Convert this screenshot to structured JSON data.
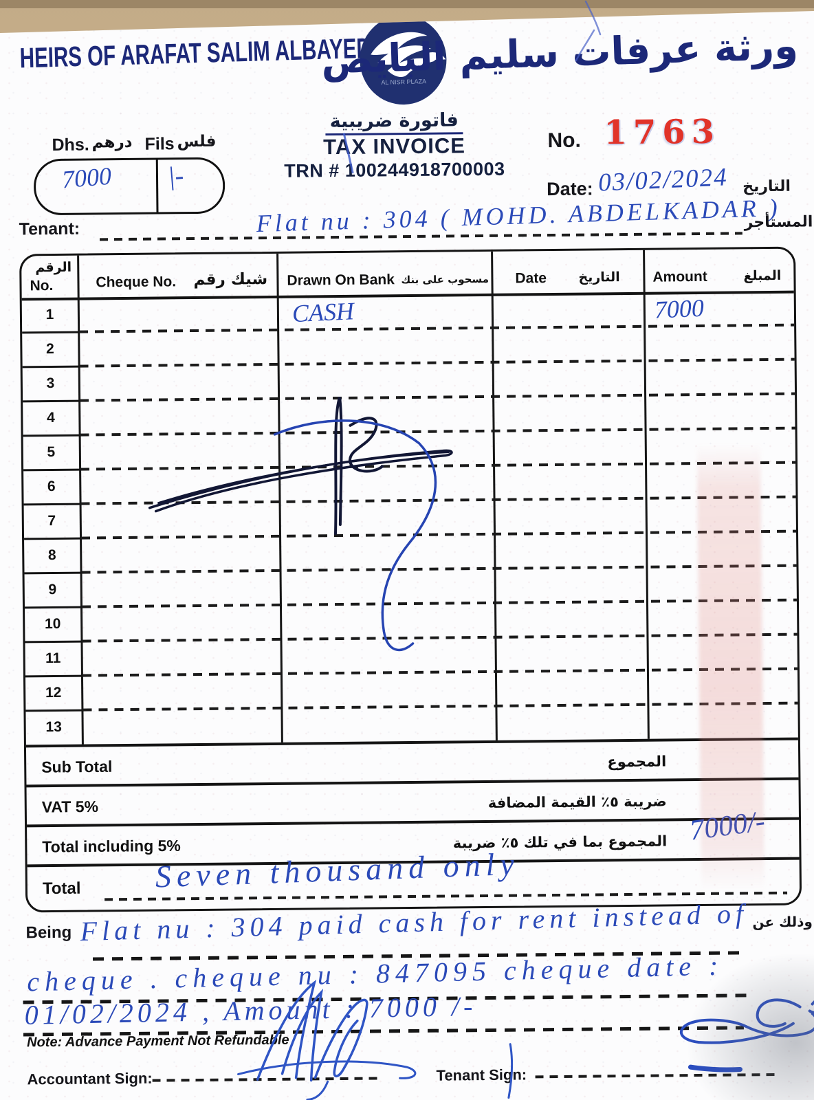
{
  "header": {
    "company_en": "HEIRS OF ARAFAT SALIM ALBAYEDH",
    "company_ar": "ورثة عرفات سليم البايض",
    "logo_caption": "AL NISR PLAZA"
  },
  "invoice_title": {
    "title_ar": "فاتورة ضريبية",
    "title_en": "TAX INVOICE",
    "trn": "TRN # 100244918700003"
  },
  "invoice_meta": {
    "no_label": "No.",
    "no_value": "1763",
    "date_label": "Date:",
    "date_value": "03/02/2024",
    "date_label_ar": "التاريخ"
  },
  "currency_box": {
    "dhs_label": "Dhs.",
    "dhs_label_ar": "درهم",
    "fils_label": "Fils",
    "fils_label_ar": "فلس",
    "dhs_value": "7000",
    "fils_value": "|-"
  },
  "tenant": {
    "label": "Tenant:",
    "label_ar": "المستأجر",
    "value": "Flat nu : 304 ( MOHD. ABDELKADAR )"
  },
  "table": {
    "headers": {
      "no_ar": "الرقم",
      "no_en": "No.",
      "cheque_en": "Cheque No.",
      "cheque_ar": "شيك رقم",
      "bank_en": "Drawn On Bank",
      "bank_ar": "مسحوب على بنك",
      "date_en": "Date",
      "date_ar": "التاريخ",
      "amount_en": "Amount",
      "amount_ar": "المبلغ"
    },
    "rows": [
      {
        "no": "1",
        "cheque": "",
        "bank": "CASH",
        "date": "",
        "amount": "7000"
      },
      {
        "no": "2",
        "cheque": "",
        "bank": "",
        "date": "",
        "amount": ""
      },
      {
        "no": "3",
        "cheque": "",
        "bank": "",
        "date": "",
        "amount": ""
      },
      {
        "no": "4",
        "cheque": "",
        "bank": "",
        "date": "",
        "amount": ""
      },
      {
        "no": "5",
        "cheque": "",
        "bank": "",
        "date": "",
        "amount": ""
      },
      {
        "no": "6",
        "cheque": "",
        "bank": "",
        "date": "",
        "amount": ""
      },
      {
        "no": "7",
        "cheque": "",
        "bank": "",
        "date": "",
        "amount": ""
      },
      {
        "no": "8",
        "cheque": "",
        "bank": "",
        "date": "",
        "amount": ""
      },
      {
        "no": "9",
        "cheque": "",
        "bank": "",
        "date": "",
        "amount": ""
      },
      {
        "no": "10",
        "cheque": "",
        "bank": "",
        "date": "",
        "amount": ""
      },
      {
        "no": "11",
        "cheque": "",
        "bank": "",
        "date": "",
        "amount": ""
      },
      {
        "no": "12",
        "cheque": "",
        "bank": "",
        "date": "",
        "amount": ""
      },
      {
        "no": "13",
        "cheque": "",
        "bank": "",
        "date": "",
        "amount": ""
      }
    ]
  },
  "summary": {
    "sub_total": {
      "en": "Sub Total",
      "ar": "المجموع",
      "value": ""
    },
    "vat": {
      "en": "VAT 5%",
      "ar": "ضريبة ٥٪ القيمة المضافة",
      "value": ""
    },
    "total_including": {
      "en": "Total including 5%",
      "ar": "المجموع بما في تلك ٥٪ ضريبة",
      "value": "7000/-"
    },
    "total": {
      "en": "Total",
      "value_words": "Seven thousand only"
    }
  },
  "being": {
    "label": "Being",
    "label_ar": "وذلك عن",
    "line1": "Flat nu : 304 paid cash for rent instead of",
    "line2": "cheque .  cheque nu : 847095  cheque date :",
    "line3": "01/02/2024 ,     Amount : 7000 /-"
  },
  "note": "Note: Advance Payment Not Refundable",
  "signatures": {
    "accountant_label": "Accountant Sign:",
    "tenant_label": "Tenant Sign:"
  },
  "colors": {
    "brand_navy": "#1c2878",
    "stamp_red": "#e13329",
    "ink_blue": "#2b4ab8",
    "scan_tan": "#d3c1a2"
  }
}
